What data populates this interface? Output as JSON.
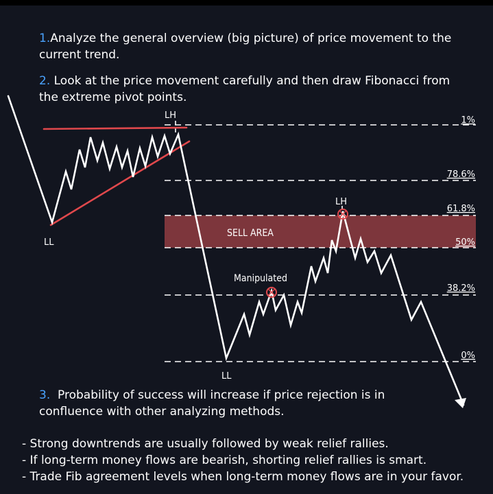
{
  "steps": {
    "step1": {
      "num": "1.",
      "text": "Analyze the general overview (big picture) of price movement to the\ncurrent trend."
    },
    "step2": {
      "num": "2.",
      "text": " Look at the price movement carefully and then draw Fibonacci from\nthe extreme pivot points."
    },
    "step3": {
      "num": "3.",
      "text": "  Probability of success will increase if price rejection is in\nconfluence with other analyzing methods."
    }
  },
  "bullets": [
    "- Strong downtrends are usually followed by weak relief rallies.",
    "- If long-term money flows are bearish, shorting relief rallies is smart.",
    "- Trade Fib agreement levels when long-term money flows are in your favor."
  ],
  "diagram": {
    "fib_levels": [
      "1%",
      "78.6%",
      "61.8%",
      "50%",
      "38.2%",
      "0%"
    ],
    "labels": {
      "lh_top": "LH",
      "lh_mid": "LH",
      "ll_left": "LL",
      "ll_bottom": "LL",
      "sell_area": "SELL AREA",
      "manipulated": "Manipulated"
    },
    "colors": {
      "background": "#12151f",
      "price_line": "#ffffff",
      "trendline": "#e0484c",
      "sell_zone": "#8a3a3f",
      "step_number": "#4aa3ff"
    }
  }
}
